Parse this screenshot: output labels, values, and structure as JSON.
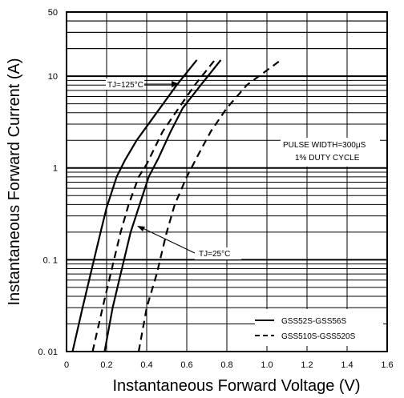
{
  "chart_data": {
    "type": "line",
    "xlabel": "Instantaneous Forward Voltage (V)",
    "ylabel": "Instantaneous Forward Current (A)",
    "x_ticks": [
      "0",
      "0.2",
      "0.4",
      "0.6",
      "0.8",
      "1.0",
      "1.2",
      "1.4",
      "1.6"
    ],
    "y_ticks": [
      "50",
      "10",
      "1",
      "0. 1",
      "0. 01"
    ],
    "xlim": [
      0,
      1.6
    ],
    "ylim": [
      0.01,
      50
    ],
    "y_scale": "log",
    "grid": true,
    "legend_position": "bottom-right",
    "legend": [
      {
        "label": "GSS52S-GSS56S",
        "style": "solid"
      },
      {
        "label": "GSS510S-GSS520S",
        "style": "dashed"
      }
    ],
    "annotations": {
      "tj_high": "TJ=125°C",
      "tj_low": "TJ=25°C",
      "pulse_line1": "PULSE WIDTH=300μS",
      "pulse_line2": "1% DUTY CYCLE"
    },
    "series": [
      {
        "style": "solid",
        "temperature": "125°C",
        "points": [
          [
            0.03,
            0.01
          ],
          [
            0.08,
            0.03
          ],
          [
            0.12,
            0.07
          ],
          [
            0.17,
            0.2
          ],
          [
            0.2,
            0.37
          ],
          [
            0.25,
            0.8
          ],
          [
            0.29,
            1.2
          ],
          [
            0.35,
            2.0
          ],
          [
            0.45,
            4.0
          ],
          [
            0.55,
            8.0
          ],
          [
            0.65,
            15
          ]
        ]
      },
      {
        "style": "solid",
        "temperature": "25°C",
        "points": [
          [
            0.19,
            0.01
          ],
          [
            0.23,
            0.03
          ],
          [
            0.27,
            0.07
          ],
          [
            0.32,
            0.2
          ],
          [
            0.36,
            0.37
          ],
          [
            0.41,
            0.8
          ],
          [
            0.46,
            1.3
          ],
          [
            0.52,
            2.5
          ],
          [
            0.58,
            4.5
          ],
          [
            0.67,
            8.0
          ],
          [
            0.77,
            15
          ]
        ]
      },
      {
        "style": "dashed",
        "temperature": "125°C",
        "points": [
          [
            0.13,
            0.01
          ],
          [
            0.18,
            0.03
          ],
          [
            0.22,
            0.07
          ],
          [
            0.27,
            0.2
          ],
          [
            0.31,
            0.4
          ],
          [
            0.36,
            0.8
          ],
          [
            0.4,
            1.1
          ],
          [
            0.48,
            2.5
          ],
          [
            0.56,
            4.5
          ],
          [
            0.64,
            8.0
          ],
          [
            0.74,
            15
          ]
        ]
      },
      {
        "style": "dashed",
        "temperature": "25°C",
        "points": [
          [
            0.36,
            0.01
          ],
          [
            0.4,
            0.03
          ],
          [
            0.45,
            0.07
          ],
          [
            0.5,
            0.2
          ],
          [
            0.54,
            0.4
          ],
          [
            0.6,
            0.8
          ],
          [
            0.65,
            1.3
          ],
          [
            0.72,
            2.5
          ],
          [
            0.8,
            4.5
          ],
          [
            0.9,
            8.0
          ],
          [
            1.07,
            15
          ]
        ]
      }
    ]
  }
}
